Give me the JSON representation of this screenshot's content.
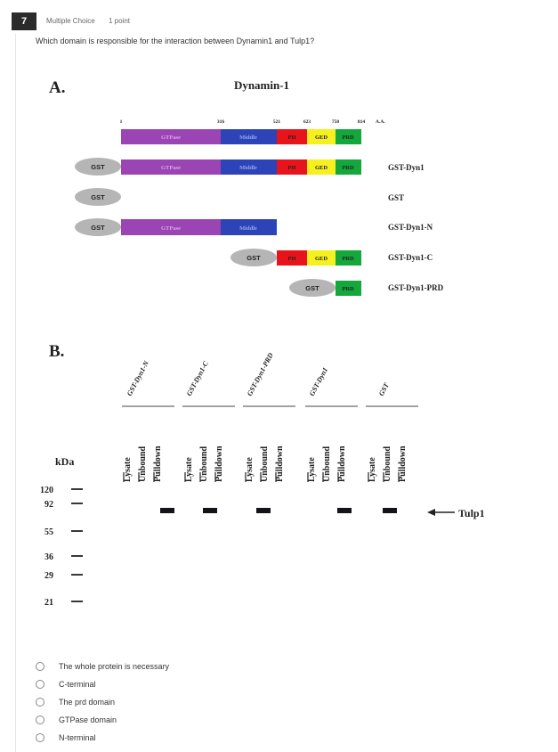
{
  "question": {
    "number": "7",
    "type": "Multiple Choice",
    "points": "1 point",
    "text": "Which domain is responsible for the interaction between Dynamin1 and Tulp1?"
  },
  "figure": {
    "panel_a": {
      "label": "A.",
      "title": "Dynamin-1",
      "positions": [
        "1",
        "316",
        "521",
        "623",
        "750",
        "814",
        "A.A."
      ],
      "domains": {
        "gtpase": "GTPase",
        "middle": "Middle",
        "ph": "PH",
        "ged": "GED",
        "prd": "PRD"
      },
      "tag": "GST",
      "constructs": [
        "GST-Dyn1",
        "GST",
        "GST-Dyn1-N",
        "GST-Dyn1-C",
        "GST-Dyn1-PRD"
      ],
      "colors": {
        "gtpase": "#9b44b4",
        "middle": "#2c44b8",
        "ph": "#e8141c",
        "ged": "#f5f01e",
        "prd": "#14a83c",
        "gst": "#b5b5b5"
      }
    },
    "panel_b": {
      "label": "B.",
      "kda_label": "kDa",
      "markers": [
        "120",
        "92",
        "55",
        "36",
        "29",
        "21"
      ],
      "groups": [
        "GST-Dyn1-N",
        "GST-Dyn1-C",
        "GST-Dyn1-PRD",
        "GST-Dyn1",
        "GST"
      ],
      "lanes": [
        "Lysate",
        "Unbound",
        "Pulldown"
      ],
      "band_label": "Tulp1"
    }
  },
  "choices": [
    {
      "label": "The whole protein is necessary",
      "selected": false
    },
    {
      "label": "C-terminal",
      "selected": false
    },
    {
      "label": "The prd domain",
      "selected": false
    },
    {
      "label": "GTPase domain",
      "selected": false
    },
    {
      "label": "N-terminal",
      "selected": false
    }
  ]
}
